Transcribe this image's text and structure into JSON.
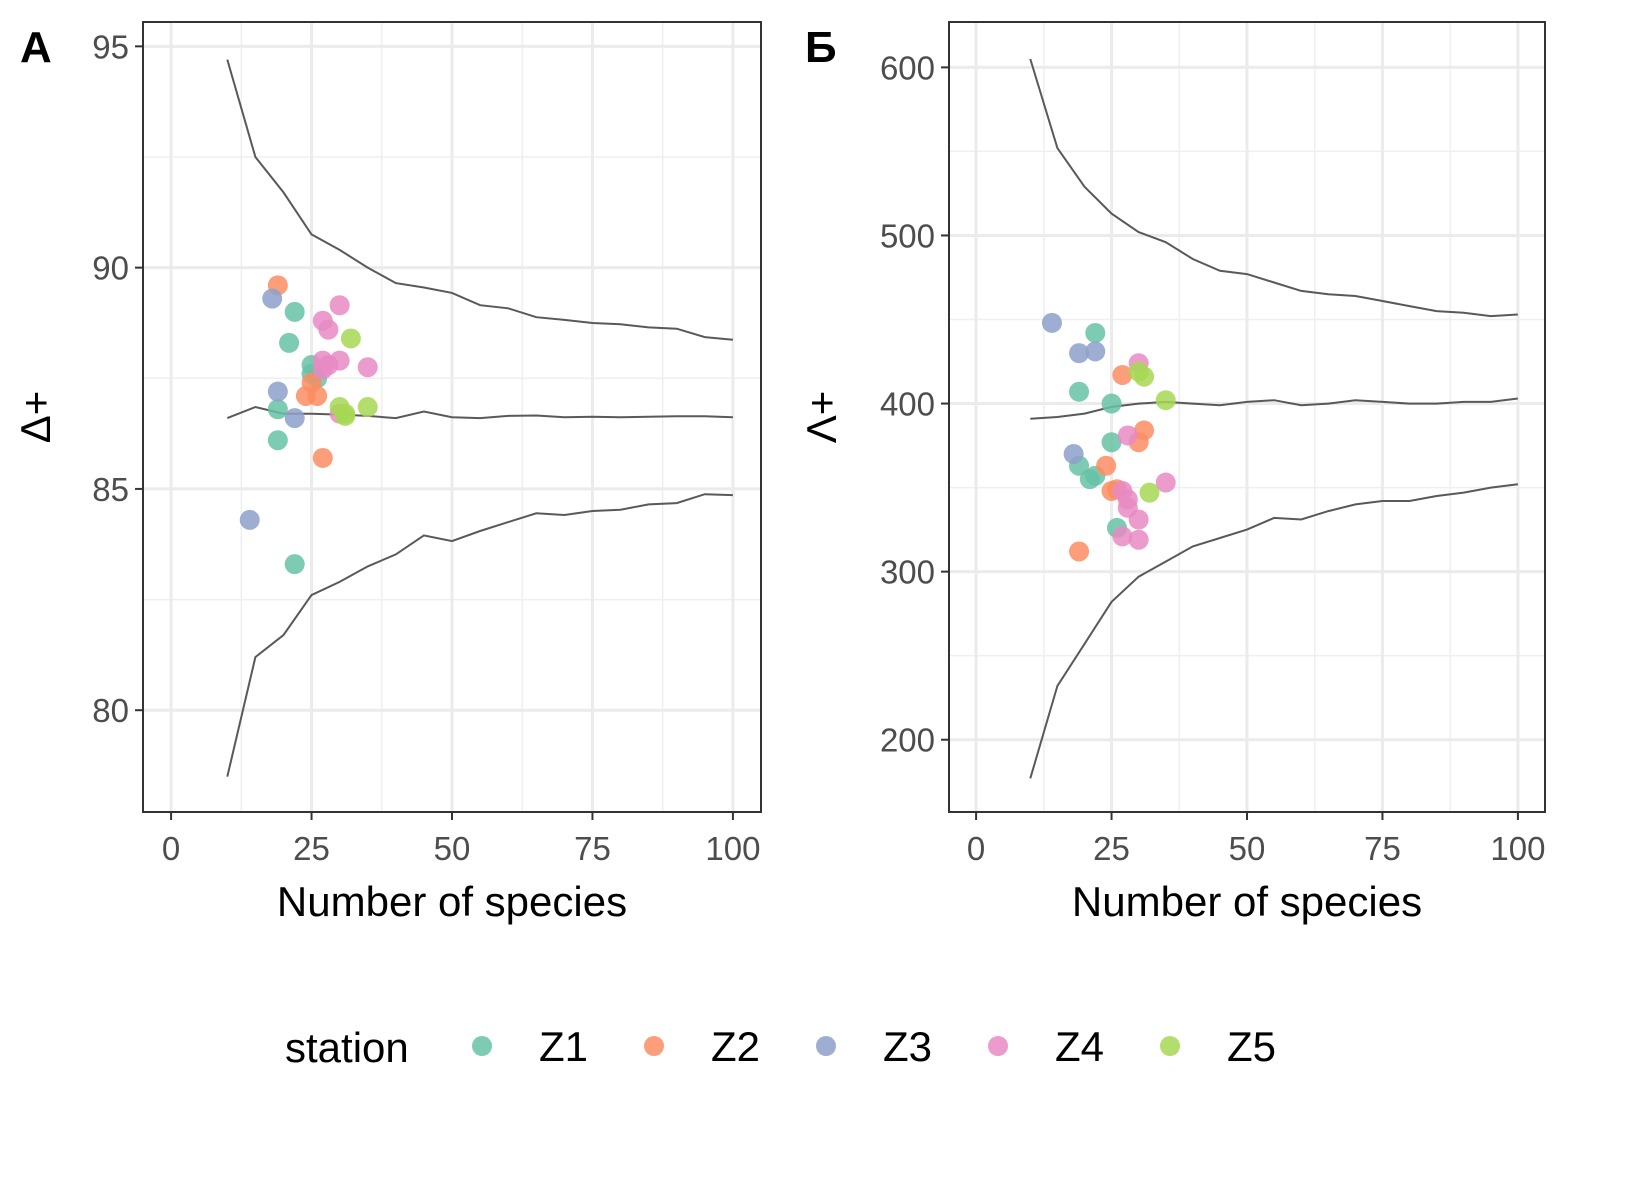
{
  "legend": {
    "title": "station",
    "items": [
      {
        "label": "Z1",
        "color": "#66c2a5"
      },
      {
        "label": "Z2",
        "color": "#fc8d62"
      },
      {
        "label": "Z3",
        "color": "#8da0cb"
      },
      {
        "label": "Z4",
        "color": "#e78ac3"
      },
      {
        "label": "Z5",
        "color": "#a6d854"
      }
    ]
  },
  "chart_data": [
    {
      "type": "scatter",
      "panel_label": "А",
      "xlabel": "Number of species",
      "ylabel": "Δ+",
      "xlim": [
        -5,
        105
      ],
      "ylim": [
        77.7,
        95.55
      ],
      "xticks": [
        0,
        25,
        50,
        75,
        100
      ],
      "yticks": [
        80,
        85,
        90,
        95
      ],
      "grid": true,
      "funnel": {
        "x": [
          10,
          15,
          20,
          25,
          30,
          35,
          40,
          45,
          50,
          55,
          60,
          65,
          70,
          75,
          80,
          85,
          90,
          95,
          100
        ],
        "upper": [
          94.7,
          92.5,
          91.7,
          90.75,
          90.4,
          90.0,
          89.65,
          89.55,
          89.43,
          89.15,
          89.08,
          88.88,
          88.82,
          88.75,
          88.72,
          88.65,
          88.62,
          88.43,
          88.37
        ],
        "mean": [
          86.6,
          86.85,
          86.7,
          86.7,
          86.68,
          86.65,
          86.6,
          86.75,
          86.62,
          86.6,
          86.65,
          86.66,
          86.62,
          86.63,
          86.62,
          86.63,
          86.64,
          86.64,
          86.62
        ],
        "lower": [
          78.5,
          81.2,
          81.7,
          82.6,
          82.9,
          83.25,
          83.52,
          83.95,
          83.82,
          84.05,
          84.25,
          84.45,
          84.41,
          84.5,
          84.53,
          84.65,
          84.68,
          84.88,
          84.86
        ]
      },
      "series": [
        {
          "name": "Z1",
          "points": [
            [
              19,
              86.8
            ],
            [
              19,
              86.1
            ],
            [
              21,
              88.3
            ],
            [
              22,
              89.0
            ],
            [
              25,
              87.8
            ],
            [
              25,
              87.6
            ],
            [
              26,
              87.5
            ],
            [
              22,
              83.3
            ]
          ]
        },
        {
          "name": "Z2",
          "points": [
            [
              19,
              89.6
            ],
            [
              25,
              87.4
            ],
            [
              24,
              87.1
            ],
            [
              26,
              87.1
            ],
            [
              27,
              85.7
            ]
          ]
        },
        {
          "name": "Z3",
          "points": [
            [
              18,
              89.3
            ],
            [
              19,
              87.2
            ],
            [
              22,
              86.6
            ],
            [
              14,
              84.3
            ]
          ]
        },
        {
          "name": "Z4",
          "points": [
            [
              27,
              88.8
            ],
            [
              28,
              88.6
            ],
            [
              30,
              89.15
            ],
            [
              27,
              87.9
            ],
            [
              28,
              87.8
            ],
            [
              30,
              87.9
            ],
            [
              35,
              87.75
            ],
            [
              27,
              87.7
            ],
            [
              30,
              86.7
            ]
          ]
        },
        {
          "name": "Z5",
          "points": [
            [
              32,
              88.4
            ],
            [
              30,
              86.85
            ],
            [
              31,
              86.7
            ],
            [
              35,
              86.85
            ],
            [
              31,
              86.65
            ]
          ]
        }
      ]
    },
    {
      "type": "scatter",
      "panel_label": "Б",
      "xlabel": "Number of species",
      "ylabel": "Λ+",
      "xlim": [
        -5,
        105
      ],
      "ylim": [
        157,
        627
      ],
      "xticks": [
        0,
        25,
        50,
        75,
        100
      ],
      "yticks": [
        200,
        300,
        400,
        500,
        600
      ],
      "grid": true,
      "funnel": {
        "x": [
          10,
          15,
          20,
          25,
          30,
          35,
          40,
          45,
          50,
          55,
          60,
          65,
          70,
          75,
          80,
          85,
          90,
          95,
          100
        ],
        "upper": [
          605,
          552,
          529,
          513,
          502,
          496,
          486,
          479,
          477,
          472,
          467,
          465,
          464,
          461,
          458,
          455,
          454,
          452,
          453
        ],
        "mean": [
          391,
          392,
          394,
          398,
          400,
          401,
          400,
          399,
          401,
          402,
          399,
          400,
          402,
          401,
          400,
          400,
          401,
          401,
          403
        ],
        "lower": [
          177,
          232,
          257,
          282,
          297,
          306,
          315,
          320,
          325,
          332,
          331,
          336,
          340,
          342,
          342,
          345,
          347,
          350,
          352
        ]
      },
      "series": [
        {
          "name": "Z1",
          "points": [
            [
              22,
              442
            ],
            [
              19,
              407
            ],
            [
              25,
              400
            ],
            [
              25,
              377
            ],
            [
              19,
              363
            ],
            [
              21,
              355
            ],
            [
              22,
              357
            ],
            [
              26,
              326
            ]
          ]
        },
        {
          "name": "Z2",
          "points": [
            [
              27,
              417
            ],
            [
              24,
              363
            ],
            [
              26,
              349
            ],
            [
              25,
              348
            ],
            [
              31,
              384
            ],
            [
              30,
              377
            ],
            [
              19,
              312
            ]
          ]
        },
        {
          "name": "Z3",
          "points": [
            [
              14,
              448
            ],
            [
              19,
              430
            ],
            [
              22,
              431
            ],
            [
              18,
              370
            ]
          ]
        },
        {
          "name": "Z4",
          "points": [
            [
              30,
              424
            ],
            [
              28,
              381
            ],
            [
              27,
              348
            ],
            [
              28,
              343
            ],
            [
              28,
              338
            ],
            [
              35,
              353
            ],
            [
              30,
              331
            ],
            [
              27,
              321
            ],
            [
              30,
              319
            ]
          ]
        },
        {
          "name": "Z5",
          "points": [
            [
              30,
              419
            ],
            [
              31,
              416
            ],
            [
              35,
              402
            ],
            [
              32,
              347
            ]
          ]
        }
      ]
    }
  ]
}
